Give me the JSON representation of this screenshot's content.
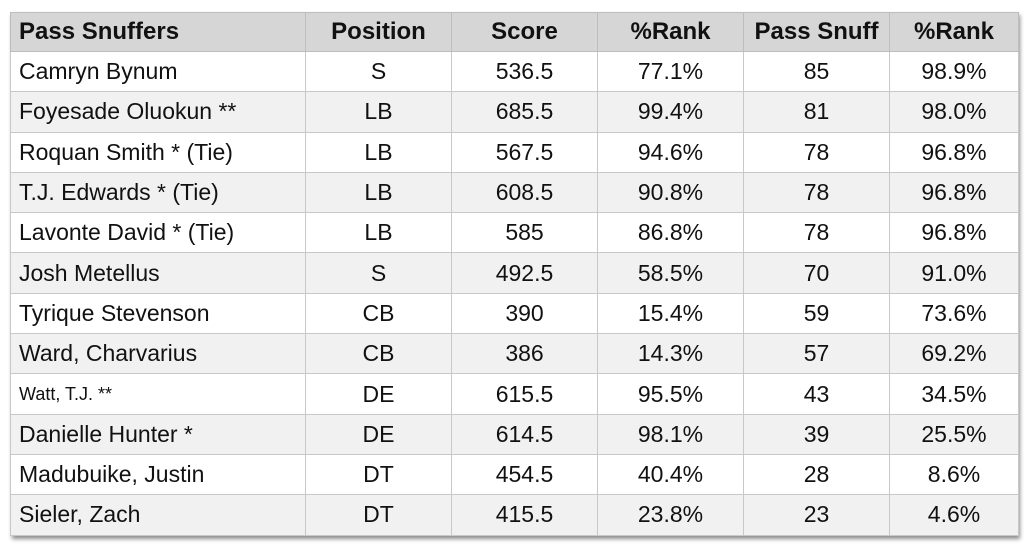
{
  "table": {
    "headers": [
      "Pass Snuffers",
      "Position",
      "Score",
      "%Rank",
      "Pass Snuff",
      "%Rank"
    ],
    "rows": [
      [
        "Camryn Bynum",
        "S",
        "536.5",
        "77.1%",
        "85",
        "98.9%"
      ],
      [
        "Foyesade Oluokun **",
        "LB",
        "685.5",
        "99.4%",
        "81",
        "98.0%"
      ],
      [
        "Roquan Smith * (Tie)",
        "LB",
        "567.5",
        "94.6%",
        "78",
        "96.8%"
      ],
      [
        "T.J. Edwards * (Tie)",
        "LB",
        "608.5",
        "90.8%",
        "78",
        "96.8%"
      ],
      [
        "Lavonte David * (Tie)",
        "LB",
        "585",
        "86.8%",
        "78",
        "96.8%"
      ],
      [
        "Josh Metellus",
        "S",
        "492.5",
        "58.5%",
        "70",
        "91.0%"
      ],
      [
        "Tyrique Stevenson",
        "CB",
        "390",
        "15.4%",
        "59",
        "73.6%"
      ],
      [
        "Ward, Charvarius",
        "CB",
        "386",
        "14.3%",
        "57",
        "69.2%"
      ],
      [
        "Watt, T.J. **",
        "DE",
        "615.5",
        "95.5%",
        "43",
        "34.5%"
      ],
      [
        "Danielle Hunter *",
        "DE",
        "614.5",
        "98.1%",
        "39",
        "25.5%"
      ],
      [
        "Madubuike, Justin",
        "DT",
        "454.5",
        "40.4%",
        "28",
        "8.6%"
      ],
      [
        "Sieler, Zach",
        "DT",
        "415.5",
        "23.8%",
        "23",
        "4.6%"
      ]
    ]
  },
  "colors": {
    "header_bg": "#d6d6d6",
    "row_alt_bg": "#f1f1f1",
    "border": "#c8c8c8"
  }
}
